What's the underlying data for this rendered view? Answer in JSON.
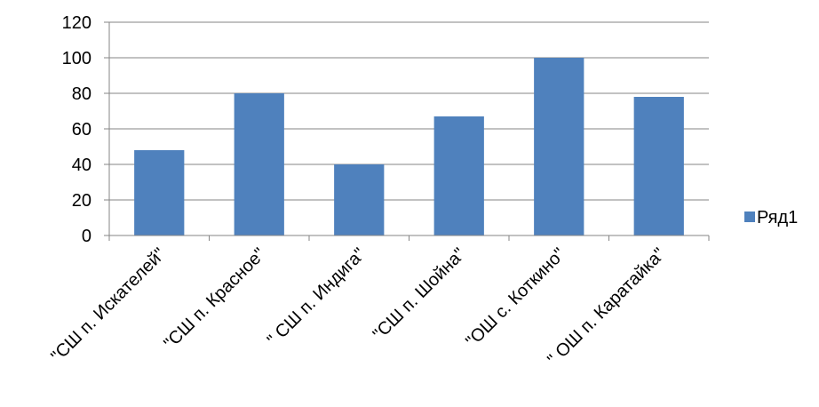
{
  "chart_data": {
    "type": "bar",
    "categories": [
      "\"СШ п. Искателей\"",
      "\"СШ п. Красное\"",
      "\" СШ п. Индига\"",
      "\"СШ п. Шойна\"",
      "\"ОШ с. Коткино\"",
      "\" ОШ п. Каратайка\""
    ],
    "series": [
      {
        "name": "Ряд1",
        "values": [
          48,
          80,
          40,
          67,
          100,
          78
        ],
        "color": "#4f81bd"
      }
    ],
    "y_ticks": [
      "0",
      "20",
      "40",
      "60",
      "80",
      "100",
      "120"
    ],
    "ylim": [
      0,
      120
    ],
    "grid": true,
    "legend_position": "right",
    "gridline_color": "#868686",
    "axis_color": "#868686"
  }
}
